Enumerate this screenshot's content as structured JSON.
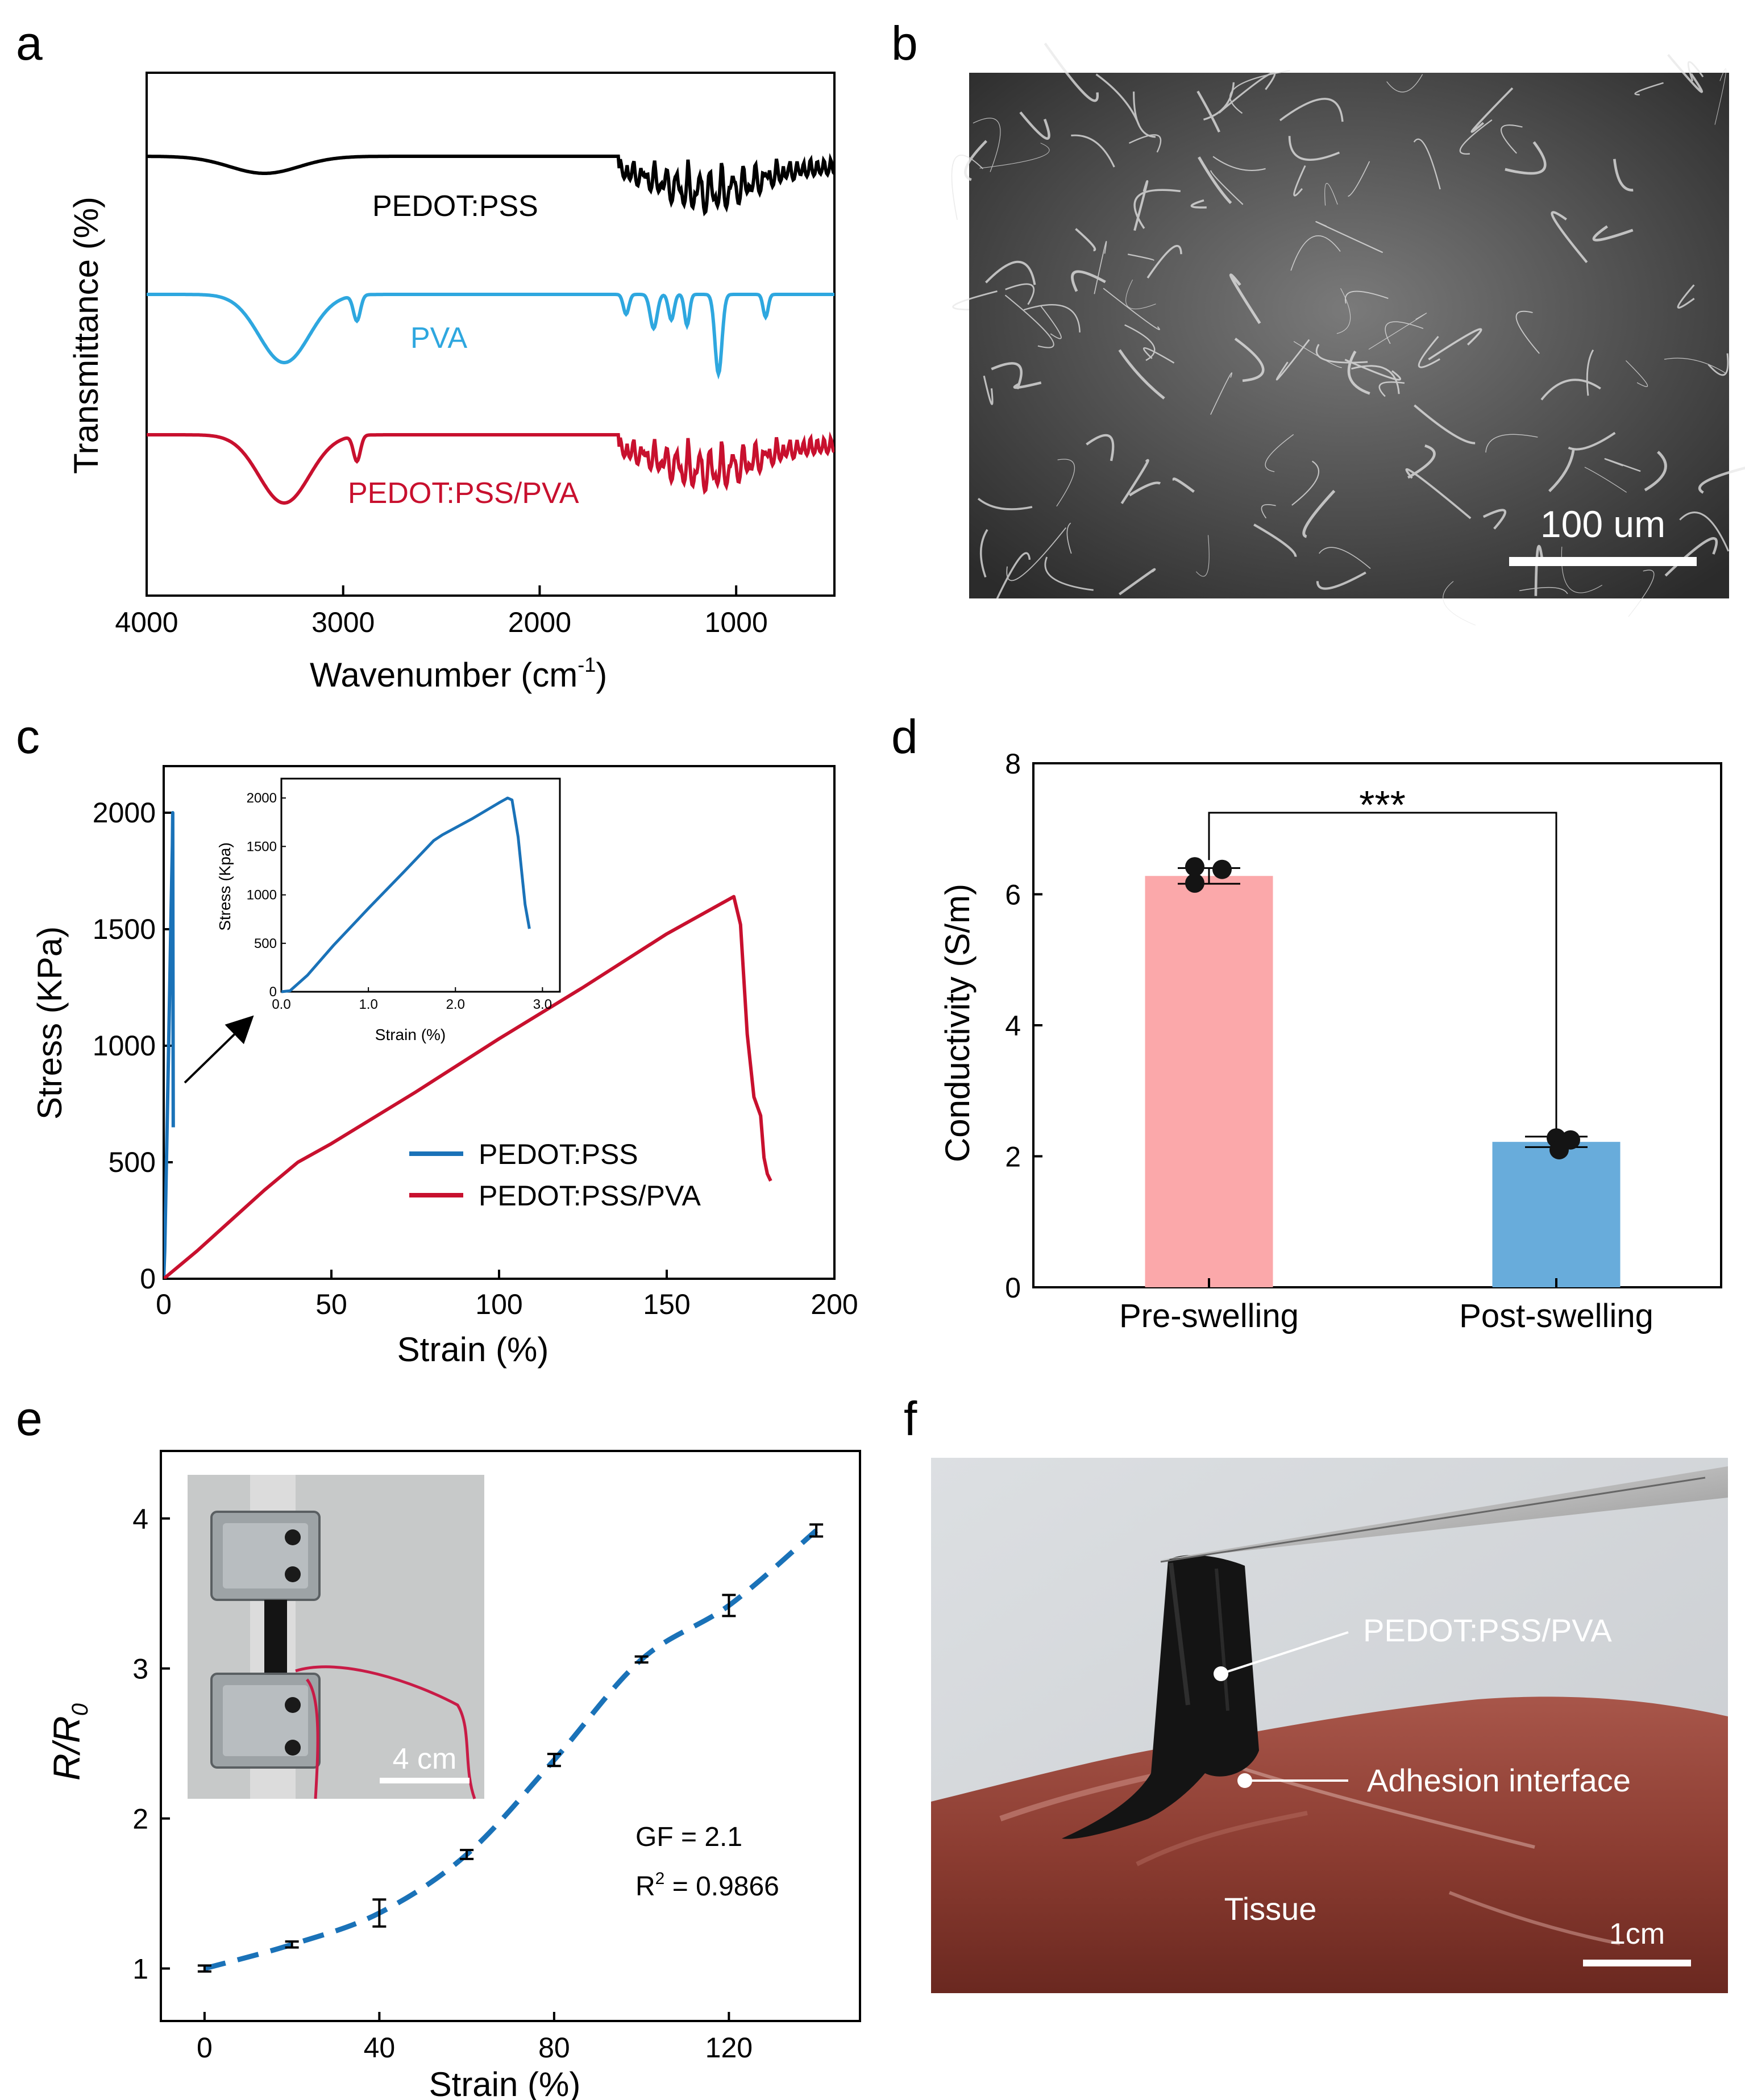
{
  "panel_labels": {
    "a": "a",
    "b": "b",
    "c": "c",
    "d": "d",
    "e": "e",
    "f": "f"
  },
  "colors": {
    "black": "#000000",
    "blue": "#1a72b8",
    "light_blue": "#2ea7df",
    "red": "#c8102e",
    "pink": "#fba8aa",
    "bar_blue": "#68acdb"
  },
  "sem_image": {
    "description_icon": "sem-micrograph",
    "scale_label": "100 um"
  },
  "photo_e": {
    "icon": "tensile-clamp-photo",
    "scale_label": "4 cm"
  },
  "photo_f": {
    "icon": "tissue-adhesion-photo",
    "label_hydrogel": "PEDOT:PSS/PVA",
    "label_interface": "Adhesion interface",
    "label_tissue": "Tissue",
    "scale_label": "1cm"
  },
  "chart_data": [
    {
      "id": "a",
      "type": "line",
      "title": "",
      "xlabel": "Wavenumber (cm",
      "xlabel_sup": "-1",
      "xlabel_end": ")",
      "ylabel": "Transmittance (%)",
      "xlim": [
        4000,
        500
      ],
      "xticks": [
        4000,
        3000,
        2000,
        1000
      ],
      "series": [
        {
          "name": "PEDOT:PSS",
          "color": "#000000",
          "offset": 2.0
        },
        {
          "name": "PVA",
          "color": "#2ea7df",
          "offset": 1.0
        },
        {
          "name": "PEDOT:PSS/PVA",
          "color": "#c8102e",
          "offset": 0.0
        }
      ]
    },
    {
      "id": "c",
      "type": "line",
      "xlabel": "Strain (%)",
      "ylabel": "Stress (KPa)",
      "xlim": [
        0,
        200
      ],
      "ylim": [
        0,
        2200
      ],
      "xticks": [
        0,
        50,
        100,
        150,
        200
      ],
      "yticks": [
        0,
        500,
        1000,
        1500,
        2000
      ],
      "series": [
        {
          "name": "PEDOT:PSS",
          "color": "#1a72b8",
          "x": [
            0,
            0.3,
            0.6,
            1.0,
            1.4,
            1.8,
            2.2,
            2.6,
            2.7,
            2.75,
            2.85
          ],
          "y": [
            0,
            120,
            330,
            640,
            950,
            1250,
            1580,
            1860,
            2000,
            1500,
            650
          ]
        },
        {
          "name": "PEDOT:PSS/PVA",
          "color": "#c8102e",
          "x": [
            0,
            5,
            10,
            20,
            30,
            40,
            50,
            75,
            100,
            125,
            150,
            165,
            170,
            172,
            174,
            176,
            177,
            178,
            179,
            180,
            181
          ],
          "y": [
            0,
            60,
            120,
            250,
            380,
            500,
            580,
            800,
            1030,
            1250,
            1480,
            1600,
            1640,
            1520,
            1050,
            780,
            740,
            700,
            520,
            450,
            420
          ]
        }
      ],
      "inset": {
        "xlabel": "Strain (%)",
        "ylabel": "Stress (Kpa)",
        "xlim": [
          0,
          3.2
        ],
        "ylim": [
          0,
          2200
        ],
        "xticks": [
          0.0,
          1.0,
          2.0,
          3.0
        ],
        "xtick_labels": [
          "0.0",
          "1.0",
          "2.0",
          "3.0"
        ],
        "yticks": [
          0,
          500,
          1000,
          1500,
          2000
        ],
        "x": [
          0,
          0.1,
          0.3,
          0.6,
          1.0,
          1.4,
          1.75,
          1.85,
          2.2,
          2.5,
          2.6,
          2.65,
          2.72,
          2.76,
          2.8,
          2.85
        ],
        "y": [
          0,
          10,
          170,
          480,
          860,
          1230,
          1560,
          1620,
          1790,
          1950,
          2000,
          1980,
          1600,
          1250,
          900,
          650
        ]
      }
    },
    {
      "id": "d",
      "type": "bar",
      "xlabel": "",
      "ylabel": "Conductivity (S/m)",
      "ylim": [
        0,
        8
      ],
      "yticks": [
        0,
        2,
        4,
        6,
        8
      ],
      "categories": [
        "Pre-swelling",
        "Post-swelling"
      ],
      "values": [
        6.28,
        2.22
      ],
      "errors": [
        0.12,
        0.08
      ],
      "points": [
        [
          6.42,
          6.38,
          6.17
        ],
        [
          2.28,
          2.25,
          2.1
        ]
      ],
      "significance": "***"
    },
    {
      "id": "e",
      "type": "line",
      "xlabel": "Strain (%)",
      "ylabel": "R/R",
      "ylabel_sub": "0",
      "xlim": [
        -10,
        150
      ],
      "ylim": [
        0.65,
        4.45
      ],
      "xticks": [
        0,
        40,
        80,
        120
      ],
      "yticks": [
        1,
        2,
        3,
        4
      ],
      "x": [
        0,
        20,
        40,
        60,
        80,
        100,
        120,
        140
      ],
      "values": [
        1.0,
        1.16,
        1.37,
        1.76,
        2.39,
        3.06,
        3.42,
        3.92
      ],
      "errors": [
        0.02,
        0.02,
        0.09,
        0.03,
        0.04,
        0.02,
        0.07,
        0.04
      ],
      "annotations": {
        "gf": "GF = 2.1",
        "r2_prefix": "R",
        "r2_sup": "2",
        "r2_value": " = 0.9866"
      }
    }
  ]
}
